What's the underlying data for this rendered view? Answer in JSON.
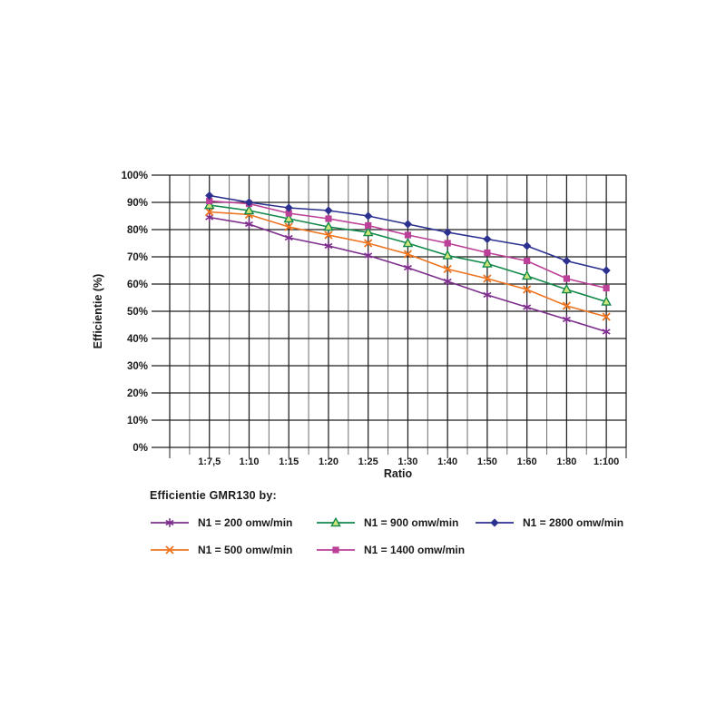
{
  "page": {
    "background": "#ffffff"
  },
  "chart_data": {
    "type": "line",
    "title": "",
    "xlabel": "Ratio",
    "ylabel": "Efficientie (%)",
    "legend_title": "Efficientie GMR130 by:",
    "categories": [
      "1:7,5",
      "1:10",
      "1:15",
      "1:20",
      "1:25",
      "1:30",
      "1:40",
      "1:50",
      "1:60",
      "1:80",
      "1:100"
    ],
    "y_tick_labels": [
      "0%",
      "10%",
      "20%",
      "30%",
      "40%",
      "50%",
      "60%",
      "70%",
      "80%",
      "90%",
      "100%"
    ],
    "ylim": [
      0,
      100
    ],
    "y_tick_step": 10,
    "grid": "full grid: horizontal line every 10%, vertical line at every category and at half-category minor positions",
    "legend_position": "below-left, two rows, column-major order",
    "colors": {
      "grid_major": "#1f1f1f",
      "grid_minor": "#6e6e6e",
      "text": "#1a1a1a"
    },
    "series": [
      {
        "name": "N1 = 200 omw/min",
        "color": "#7d2e8d",
        "marker": "asterisk",
        "values": [
          84.5,
          82,
          77,
          74,
          70.5,
          66,
          61,
          56,
          51.5,
          47,
          42.5
        ]
      },
      {
        "name": "N1 = 500 omw/min",
        "color": "#ee7420",
        "marker": "x",
        "values": [
          86.5,
          85.5,
          81,
          78,
          75,
          71,
          65.5,
          62,
          58,
          52,
          48
        ]
      },
      {
        "name": "N1 = 900 omw/min",
        "color": "#12894b",
        "marker": "triangle",
        "marker_fill": "#cfe57a",
        "values": [
          89,
          87,
          84,
          81,
          79,
          75,
          70.5,
          67.5,
          63,
          58,
          53.5
        ]
      },
      {
        "name": "N1 = 1400 omw/min",
        "color": "#bc3f98",
        "marker": "square",
        "values": [
          90.5,
          89.5,
          86,
          84,
          81.5,
          78,
          75,
          71.5,
          68.5,
          62,
          58.5
        ]
      },
      {
        "name": "N1 = 2800 omw/min",
        "color": "#2c3190",
        "marker": "diamond",
        "values": [
          92.5,
          90,
          88,
          87,
          85,
          82,
          79,
          76.5,
          74,
          68.5,
          65
        ]
      }
    ]
  }
}
